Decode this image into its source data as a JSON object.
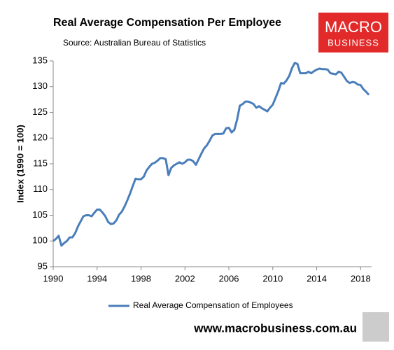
{
  "chart_data": {
    "type": "line",
    "title": "Real Average Compensation Per Employee",
    "subtitle": "Source: Australian Bureau of Statistics",
    "y_label": "Index (1990 = 100)",
    "logo": [
      "MACRO",
      "BUSINESS"
    ],
    "footer": "www.macrobusiness.com.au",
    "x": [
      1990,
      1990.25,
      1990.5,
      1990.75,
      1991,
      1991.25,
      1991.5,
      1991.75,
      1992,
      1992.25,
      1992.5,
      1992.75,
      1993,
      1993.25,
      1993.5,
      1993.75,
      1994,
      1994.25,
      1994.5,
      1994.75,
      1995,
      1995.25,
      1995.5,
      1995.75,
      1996,
      1996.25,
      1996.5,
      1996.75,
      1997,
      1997.25,
      1997.5,
      1997.75,
      1998,
      1998.25,
      1998.5,
      1998.75,
      1999,
      1999.25,
      1999.5,
      1999.75,
      2000,
      2000.25,
      2000.5,
      2000.75,
      2001,
      2001.25,
      2001.5,
      2001.75,
      2002,
      2002.25,
      2002.5,
      2002.75,
      2003,
      2003.25,
      2003.5,
      2003.75,
      2004,
      2004.25,
      2004.5,
      2004.75,
      2005,
      2005.25,
      2005.5,
      2005.75,
      2006,
      2006.25,
      2006.5,
      2006.75,
      2007,
      2007.25,
      2007.5,
      2007.75,
      2008,
      2008.25,
      2008.5,
      2008.75,
      2009,
      2009.25,
      2009.5,
      2009.75,
      2010,
      2010.25,
      2010.5,
      2010.75,
      2011,
      2011.25,
      2011.5,
      2011.75,
      2012,
      2012.25,
      2012.5,
      2012.75,
      2013,
      2013.25,
      2013.5,
      2013.75,
      2014,
      2014.25,
      2014.5,
      2014.75,
      2015,
      2015.25,
      2015.5,
      2015.75,
      2016,
      2016.25,
      2016.5,
      2016.75,
      2017,
      2017.25,
      2017.5,
      2017.75,
      2018,
      2018.25,
      2018.5,
      2018.75
    ],
    "series": [
      {
        "name": "Real Average Compensation of Employees",
        "color": "#4a7ebb",
        "values": [
          100,
          100.4,
          101.0,
          99.1,
          99.6,
          100.0,
          100.7,
          100.7,
          101.5,
          102.8,
          103.8,
          104.8,
          105.0,
          105.0,
          104.8,
          105.5,
          106.1,
          106.1,
          105.5,
          104.8,
          103.7,
          103.3,
          103.4,
          104.0,
          105.1,
          105.7,
          106.7,
          107.9,
          109.2,
          110.7,
          112.1,
          112.0,
          112.0,
          112.5,
          113.7,
          114.4,
          115.0,
          115.2,
          115.6,
          116.1,
          116.1,
          115.9,
          112.8,
          114.2,
          114.7,
          115.0,
          115.3,
          115.0,
          115.3,
          115.8,
          115.8,
          115.5,
          114.8,
          115.9,
          117.0,
          118.0,
          118.6,
          119.5,
          120.5,
          120.8,
          120.8,
          120.8,
          120.9,
          121.9,
          122.0,
          121.1,
          121.6,
          123.6,
          126.3,
          126.6,
          127.1,
          127.1,
          126.9,
          126.6,
          125.9,
          126.2,
          125.8,
          125.5,
          125.2,
          125.9,
          126.5,
          127.8,
          129.1,
          130.7,
          130.6,
          131.2,
          132.1,
          133.6,
          134.6,
          134.4,
          132.6,
          132.6,
          132.6,
          132.9,
          132.6,
          133.0,
          133.3,
          133.5,
          133.4,
          133.4,
          133.3,
          132.6,
          132.5,
          132.4,
          132.9,
          132.7,
          131.9,
          131.1,
          130.7,
          130.9,
          130.8,
          130.4,
          130.3,
          129.5,
          129.0,
          128.4
        ]
      }
    ],
    "xlim": [
      1990,
      2019
    ],
    "xticks": [
      1990,
      1994,
      1998,
      2002,
      2006,
      2010,
      2014,
      2018
    ],
    "ylim": [
      95,
      135
    ],
    "yticks": [
      95,
      100,
      105,
      110,
      115,
      120,
      125,
      130,
      135
    ]
  }
}
